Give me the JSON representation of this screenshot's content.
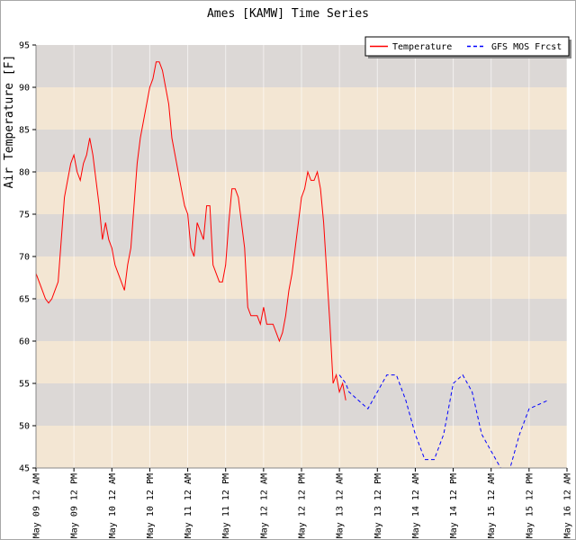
{
  "chart_data": {
    "type": "line",
    "title": "Ames [KAMW] Time Series",
    "ylabel": "Air Temperature [F]",
    "xlabel": "",
    "ylim": [
      45,
      95
    ],
    "yticks": [
      45,
      50,
      55,
      60,
      65,
      70,
      75,
      80,
      85,
      90,
      95
    ],
    "xlim": [
      0,
      168
    ],
    "x_units": "hours since first tick",
    "xticks": [
      {
        "x": 0,
        "label": "May 09 12 AM"
      },
      {
        "x": 12,
        "label": "May 09 12 PM"
      },
      {
        "x": 24,
        "label": "May 10 12 AM"
      },
      {
        "x": 36,
        "label": "May 10 12 PM"
      },
      {
        "x": 48,
        "label": "May 11 12 AM"
      },
      {
        "x": 60,
        "label": "May 11 12 PM"
      },
      {
        "x": 72,
        "label": "May 12 12 AM"
      },
      {
        "x": 84,
        "label": "May 12 12 PM"
      },
      {
        "x": 96,
        "label": "May 13 12 AM"
      },
      {
        "x": 108,
        "label": "May 13 12 PM"
      },
      {
        "x": 120,
        "label": "May 14 12 AM"
      },
      {
        "x": 132,
        "label": "May 14 12 PM"
      },
      {
        "x": 144,
        "label": "May 15 12 AM"
      },
      {
        "x": 156,
        "label": "May 15 12 PM"
      },
      {
        "x": 168,
        "label": "May 16 12 AM"
      }
    ],
    "legend": {
      "position": "top-right"
    },
    "background": {
      "band_colors": [
        "#f3e6d3",
        "#dcd8d6"
      ]
    },
    "series": [
      {
        "name": "Temperature",
        "color": "#ff0000",
        "style": "solid",
        "points": [
          [
            0,
            68
          ],
          [
            1,
            67
          ],
          [
            2,
            66
          ],
          [
            3,
            65
          ],
          [
            4,
            64.5
          ],
          [
            5,
            65
          ],
          [
            6,
            66
          ],
          [
            7,
            67
          ],
          [
            8,
            72
          ],
          [
            9,
            77
          ],
          [
            10,
            79
          ],
          [
            11,
            81
          ],
          [
            12,
            82
          ],
          [
            13,
            80
          ],
          [
            14,
            79
          ],
          [
            15,
            81
          ],
          [
            16,
            82
          ],
          [
            17,
            84
          ],
          [
            18,
            82
          ],
          [
            19,
            79
          ],
          [
            20,
            76
          ],
          [
            21,
            72
          ],
          [
            22,
            74
          ],
          [
            23,
            72
          ],
          [
            24,
            71
          ],
          [
            25,
            69
          ],
          [
            26,
            68
          ],
          [
            27,
            67
          ],
          [
            28,
            66
          ],
          [
            29,
            69
          ],
          [
            30,
            71
          ],
          [
            31,
            76
          ],
          [
            32,
            81
          ],
          [
            33,
            84
          ],
          [
            34,
            86
          ],
          [
            35,
            88
          ],
          [
            36,
            90
          ],
          [
            37,
            91
          ],
          [
            38,
            93
          ],
          [
            39,
            93
          ],
          [
            40,
            92
          ],
          [
            41,
            90
          ],
          [
            42,
            88
          ],
          [
            43,
            84
          ],
          [
            44,
            82
          ],
          [
            45,
            80
          ],
          [
            46,
            78
          ],
          [
            47,
            76
          ],
          [
            48,
            75
          ],
          [
            49,
            71
          ],
          [
            50,
            70
          ],
          [
            51,
            74
          ],
          [
            52,
            73
          ],
          [
            53,
            72
          ],
          [
            54,
            76
          ],
          [
            55,
            76
          ],
          [
            56,
            69
          ],
          [
            57,
            68
          ],
          [
            58,
            67
          ],
          [
            59,
            67
          ],
          [
            60,
            69
          ],
          [
            61,
            74
          ],
          [
            62,
            78
          ],
          [
            63,
            78
          ],
          [
            64,
            77
          ],
          [
            65,
            74
          ],
          [
            66,
            71
          ],
          [
            67,
            64
          ],
          [
            68,
            63
          ],
          [
            69,
            63
          ],
          [
            70,
            63
          ],
          [
            71,
            62
          ],
          [
            72,
            64
          ],
          [
            73,
            62
          ],
          [
            74,
            62
          ],
          [
            75,
            62
          ],
          [
            76,
            61
          ],
          [
            77,
            60
          ],
          [
            78,
            61
          ],
          [
            79,
            63
          ],
          [
            80,
            66
          ],
          [
            81,
            68
          ],
          [
            82,
            71
          ],
          [
            83,
            74
          ],
          [
            84,
            77
          ],
          [
            85,
            78
          ],
          [
            86,
            80
          ],
          [
            87,
            79
          ],
          [
            88,
            79
          ],
          [
            89,
            80
          ],
          [
            90,
            78
          ],
          [
            91,
            74
          ],
          [
            92,
            68
          ],
          [
            93,
            62
          ],
          [
            94,
            55
          ],
          [
            95,
            56
          ],
          [
            96,
            54
          ],
          [
            97,
            55
          ],
          [
            98,
            53
          ]
        ]
      },
      {
        "name": "GFS MOS Frcst",
        "color": "#0000ff",
        "style": "dashed",
        "points": [
          [
            96,
            56
          ],
          [
            98,
            55
          ],
          [
            99,
            54
          ],
          [
            102,
            53
          ],
          [
            105,
            52
          ],
          [
            108,
            54
          ],
          [
            111,
            56
          ],
          [
            114,
            56
          ],
          [
            117,
            53
          ],
          [
            120,
            49
          ],
          [
            123,
            46
          ],
          [
            126,
            46
          ],
          [
            129,
            49
          ],
          [
            132,
            55
          ],
          [
            135,
            56
          ],
          [
            138,
            54
          ],
          [
            141,
            49
          ],
          [
            144,
            47
          ],
          [
            147,
            45
          ],
          [
            150,
            45
          ],
          [
            153,
            49
          ],
          [
            156,
            52
          ],
          [
            159,
            52.5
          ],
          [
            162,
            53
          ]
        ]
      }
    ]
  }
}
